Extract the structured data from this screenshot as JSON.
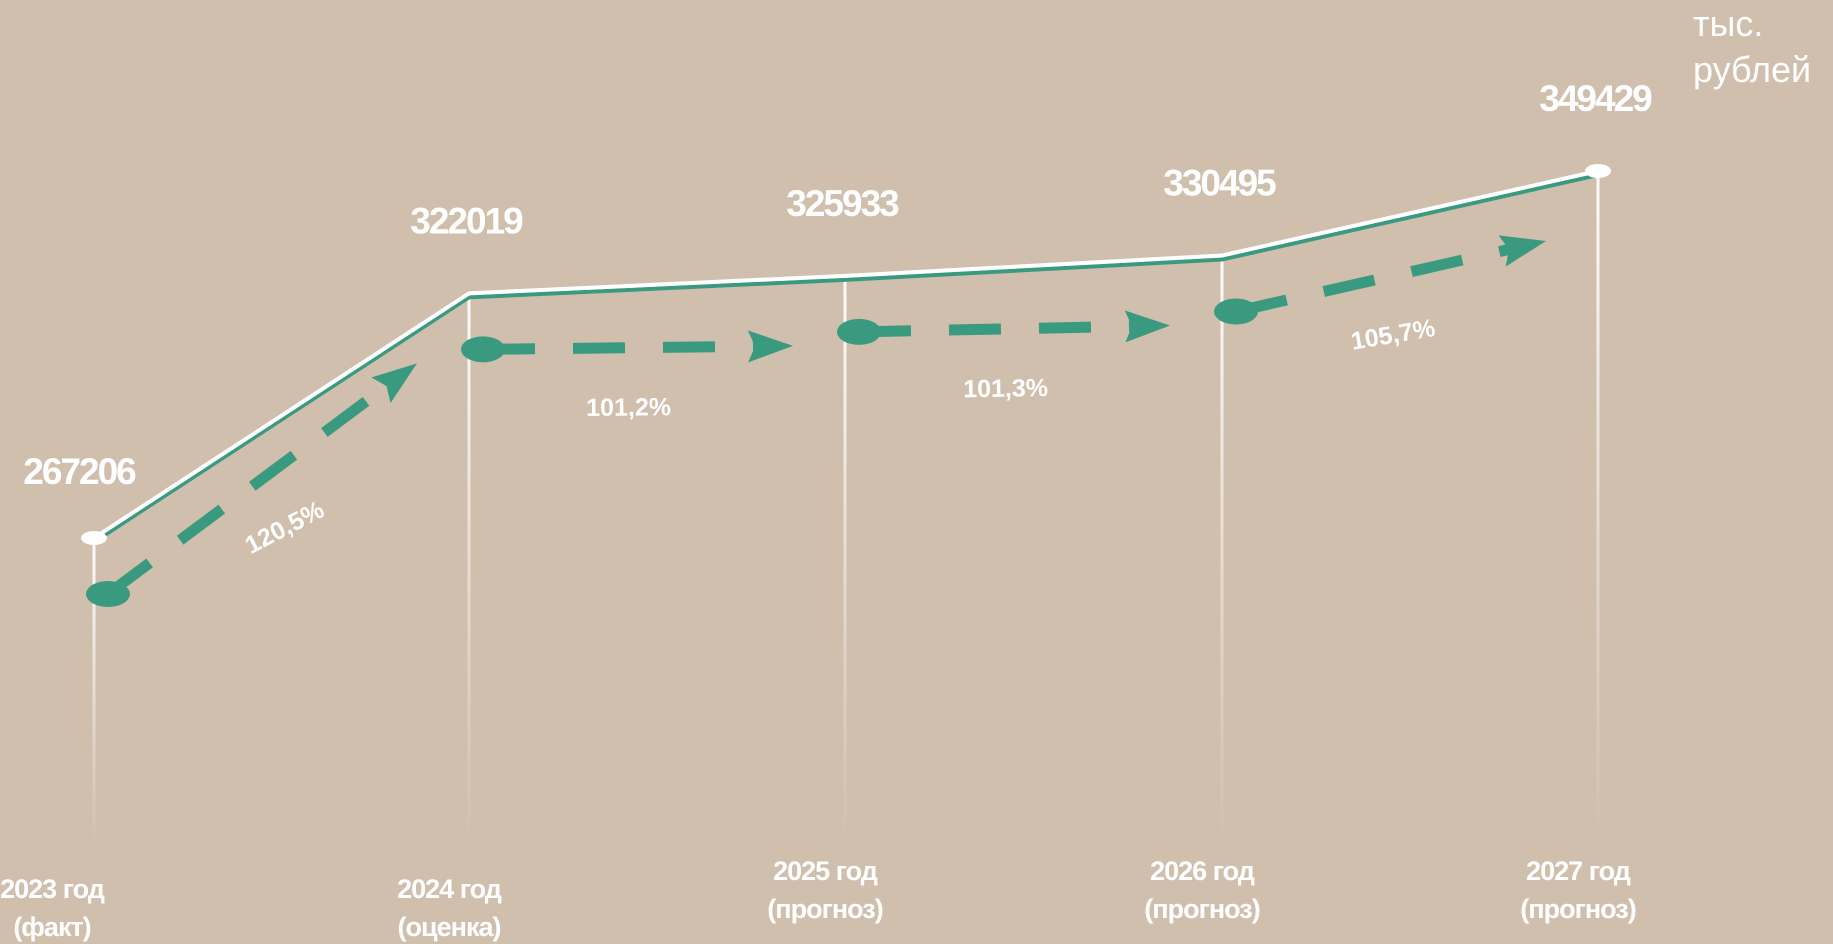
{
  "chart_data": {
    "type": "line",
    "unit": [
      "тыс.",
      "рублей"
    ],
    "categories": [
      [
        "2023 год",
        "(факт)"
      ],
      [
        "2024 год",
        "(оценка)"
      ],
      [
        "2025 год",
        "(прогноз)"
      ],
      [
        "2026 год",
        "(прогноз)"
      ],
      [
        "2027 год",
        "(прогноз)"
      ]
    ],
    "values": [
      267206,
      322019,
      325933,
      330495,
      349429
    ],
    "annotations": [
      "120,5%",
      "101,2%",
      "101,3%",
      "105,7%"
    ],
    "color": "#ffffff",
    "arrow_color": "#3a9a80"
  }
}
